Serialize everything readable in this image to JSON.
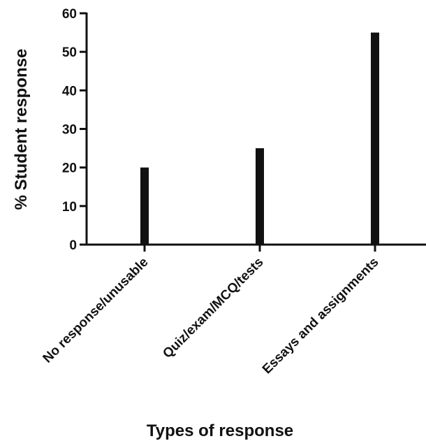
{
  "chart_data": {
    "type": "bar",
    "categories": [
      "No response/unusable",
      "Quiz/exam/MCQ/tests",
      "Essays and assignments"
    ],
    "values": [
      20,
      25,
      55
    ],
    "title": "",
    "xlabel": "Types of response",
    "ylabel": "% Student response",
    "ylim": [
      0,
      60
    ],
    "yticks": [
      0,
      10,
      20,
      30,
      40,
      50,
      60
    ],
    "grid": false,
    "legend": "none",
    "bar_color": "#111111",
    "axis_color": "#111111"
  }
}
